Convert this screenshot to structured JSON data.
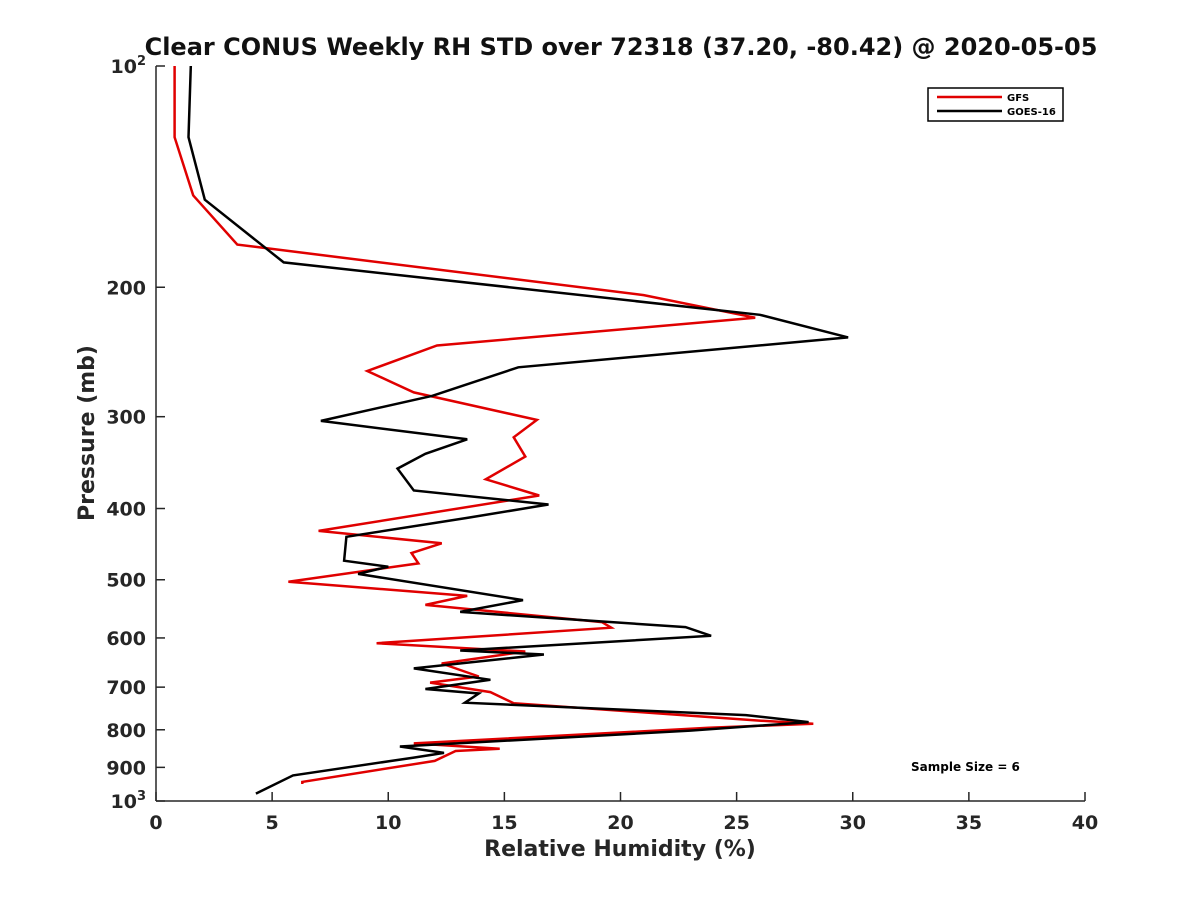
{
  "chart_data": {
    "type": "line",
    "title": "Clear CONUS Weekly RH STD over 72318 (37.20, -80.42) @ 2020-05-05",
    "xlabel": "Relative Humidity (%)",
    "ylabel": "Pressure (mb)",
    "xlim": [
      0,
      40
    ],
    "ylim": [
      100,
      1000
    ],
    "y_scale": "log",
    "y_reversed": true,
    "x_ticks": [
      "0",
      "5",
      "10",
      "15",
      "20",
      "25",
      "30",
      "35",
      "40"
    ],
    "x_tick_values": [
      0,
      5,
      10,
      15,
      20,
      25,
      30,
      35,
      40
    ],
    "y_ticks": [
      {
        "value": 100,
        "base": "10",
        "exp": "2"
      },
      {
        "value": 200,
        "label": "200"
      },
      {
        "value": 300,
        "label": "300"
      },
      {
        "value": 400,
        "label": "400"
      },
      {
        "value": 500,
        "label": "500"
      },
      {
        "value": 600,
        "label": "600"
      },
      {
        "value": 700,
        "label": "700"
      },
      {
        "value": 800,
        "label": "800"
      },
      {
        "value": 900,
        "label": "900"
      },
      {
        "value": 1000,
        "base": "10",
        "exp": "3"
      }
    ],
    "legend_position": "top-right",
    "grid": false,
    "annotation": "Sample Size = 6",
    "series": [
      {
        "name": "GFS",
        "color": "#e00000",
        "points": [
          [
            0.8,
            100
          ],
          [
            0.8,
            125
          ],
          [
            1.6,
            150
          ],
          [
            3.5,
            175
          ],
          [
            21,
            205
          ],
          [
            25.8,
            220
          ],
          [
            12.1,
            240
          ],
          [
            9.1,
            260
          ],
          [
            11.1,
            278
          ],
          [
            16.4,
            303
          ],
          [
            15.4,
            320
          ],
          [
            15.9,
            340
          ],
          [
            14.2,
            365
          ],
          [
            16.5,
            384
          ],
          [
            7.0,
            429
          ],
          [
            12.3,
            446
          ],
          [
            11.0,
            460
          ],
          [
            11.3,
            475
          ],
          [
            5.7,
            503
          ],
          [
            13.4,
            526
          ],
          [
            11.6,
            541
          ],
          [
            19.2,
            571
          ],
          [
            19.6,
            581
          ],
          [
            9.5,
            610
          ],
          [
            15.9,
            626
          ],
          [
            12.3,
            650
          ],
          [
            13.9,
            677
          ],
          [
            11.8,
            690
          ],
          [
            14.4,
            711
          ],
          [
            15.4,
            736
          ],
          [
            25.9,
            777
          ],
          [
            28.3,
            785
          ],
          [
            23.8,
            795
          ],
          [
            11.1,
            835
          ],
          [
            14.8,
            849
          ],
          [
            12.9,
            855
          ],
          [
            12.0,
            882
          ],
          [
            6.3,
            942
          ],
          [
            6.3,
            948
          ]
        ]
      },
      {
        "name": "GOES-16",
        "color": "#000000",
        "points": [
          [
            1.5,
            100
          ],
          [
            1.4,
            125
          ],
          [
            2.1,
            152
          ],
          [
            5.5,
            185
          ],
          [
            26.0,
            218
          ],
          [
            29.8,
            234
          ],
          [
            15.6,
            257
          ],
          [
            11.9,
            281
          ],
          [
            7.1,
            304
          ],
          [
            13.4,
            322
          ],
          [
            11.6,
            337
          ],
          [
            10.4,
            353
          ],
          [
            11.1,
            378
          ],
          [
            16.9,
            395
          ],
          [
            13.4,
            412
          ],
          [
            8.2,
            437
          ],
          [
            8.1,
            471
          ],
          [
            10.0,
            480
          ],
          [
            8.7,
            491
          ],
          [
            15.8,
            533
          ],
          [
            13.1,
            553
          ],
          [
            22.8,
            580
          ],
          [
            23.9,
            596
          ],
          [
            13.1,
            624
          ],
          [
            16.7,
            632
          ],
          [
            11.1,
            660
          ],
          [
            14.4,
            684
          ],
          [
            11.6,
            704
          ],
          [
            13.9,
            714
          ],
          [
            13.3,
            735
          ],
          [
            25.4,
            764
          ],
          [
            28.1,
            781
          ],
          [
            23.0,
            802
          ],
          [
            10.5,
            843
          ],
          [
            12.4,
            860
          ],
          [
            11.1,
            873
          ],
          [
            5.9,
            923
          ],
          [
            4.3,
            977
          ]
        ]
      }
    ]
  }
}
